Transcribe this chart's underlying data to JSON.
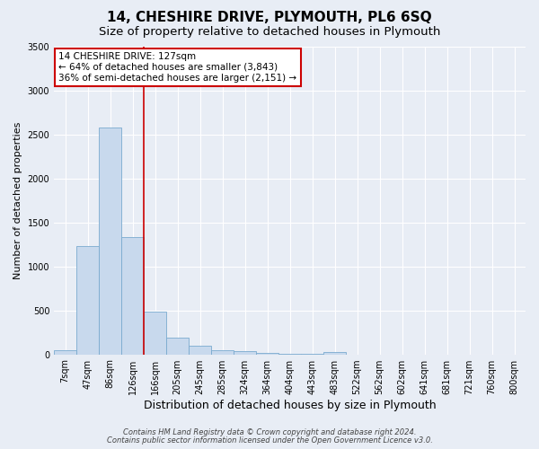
{
  "title": "14, CHESHIRE DRIVE, PLYMOUTH, PL6 6SQ",
  "subtitle": "Size of property relative to detached houses in Plymouth",
  "xlabel": "Distribution of detached houses by size in Plymouth",
  "ylabel": "Number of detached properties",
  "categories": [
    "7sqm",
    "47sqm",
    "86sqm",
    "126sqm",
    "166sqm",
    "205sqm",
    "245sqm",
    "285sqm",
    "324sqm",
    "364sqm",
    "404sqm",
    "443sqm",
    "483sqm",
    "522sqm",
    "562sqm",
    "602sqm",
    "641sqm",
    "681sqm",
    "721sqm",
    "760sqm",
    "800sqm"
  ],
  "values": [
    50,
    1230,
    2580,
    1330,
    490,
    185,
    100,
    50,
    35,
    20,
    10,
    5,
    30,
    0,
    0,
    0,
    0,
    0,
    0,
    0,
    0
  ],
  "bar_color": "#c8d9ed",
  "bar_edge_color": "#7aaacf",
  "vline_x_idx": 3,
  "vline_color": "#cc0000",
  "annotation_text": "14 CHESHIRE DRIVE: 127sqm\n← 64% of detached houses are smaller (3,843)\n36% of semi-detached houses are larger (2,151) →",
  "annotation_box_color": "#ffffff",
  "annotation_box_edge": "#cc0000",
  "ylim": [
    0,
    3500
  ],
  "yticks": [
    0,
    500,
    1000,
    1500,
    2000,
    2500,
    3000,
    3500
  ],
  "background_color": "#e8edf5",
  "plot_bg_color": "#e8edf5",
  "footer_line1": "Contains HM Land Registry data © Crown copyright and database right 2024.",
  "footer_line2": "Contains public sector information licensed under the Open Government Licence v3.0.",
  "title_fontsize": 11,
  "subtitle_fontsize": 9.5,
  "xlabel_fontsize": 9,
  "ylabel_fontsize": 8,
  "annot_fontsize": 7.5,
  "tick_fontsize": 7
}
